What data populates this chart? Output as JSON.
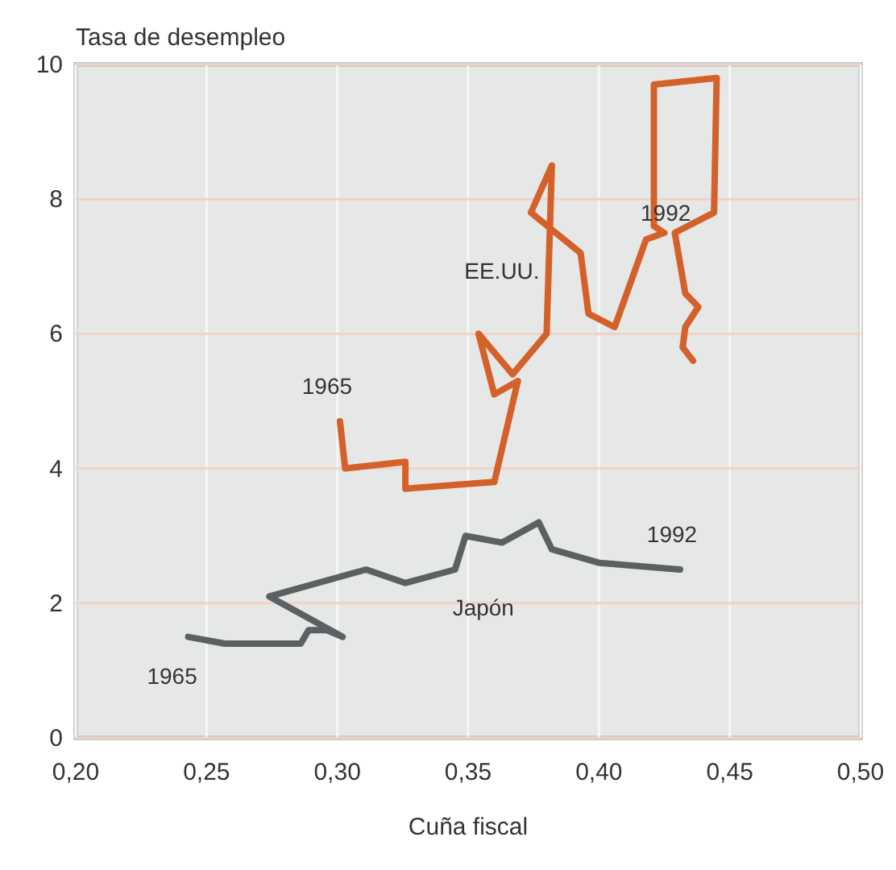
{
  "chart_data": {
    "type": "line",
    "xlabel": "Cuña fiscal",
    "ylabel": "Tasa de desempleo",
    "xlim": [
      0.2,
      0.5
    ],
    "ylim": [
      0,
      10
    ],
    "xticks": [
      {
        "value": 0.2,
        "label": "0,20"
      },
      {
        "value": 0.25,
        "label": "0,25"
      },
      {
        "value": 0.3,
        "label": "0,30"
      },
      {
        "value": 0.35,
        "label": "0,35"
      },
      {
        "value": 0.4,
        "label": "0,40"
      },
      {
        "value": 0.45,
        "label": "0,45"
      },
      {
        "value": 0.5,
        "label": "0,50"
      }
    ],
    "yticks": [
      0,
      2,
      4,
      6,
      8,
      10
    ],
    "grid": true,
    "line_style": "solid",
    "series": [
      {
        "name": "EE.UU.",
        "color": "#d4602a",
        "x": [
          0.301,
          0.303,
          0.326,
          0.326,
          0.36,
          0.369,
          0.36,
          0.354,
          0.367,
          0.38,
          0.382,
          0.374,
          0.393,
          0.396,
          0.406,
          0.418,
          0.425,
          0.421,
          0.421,
          0.445,
          0.444,
          0.429,
          0.433,
          0.438,
          0.433,
          0.432,
          0.436
        ],
        "values": [
          4.7,
          4.0,
          4.1,
          3.7,
          3.8,
          5.3,
          5.1,
          6.0,
          5.4,
          6.0,
          8.5,
          7.8,
          7.2,
          6.3,
          6.1,
          7.4,
          7.5,
          7.6,
          9.7,
          9.8,
          7.8,
          7.5,
          6.6,
          6.4,
          6.1,
          5.8,
          5.6
        ]
      },
      {
        "name": "Japón",
        "color": "#5b6063",
        "x": [
          0.243,
          0.257,
          0.286,
          0.289,
          0.296,
          0.302,
          0.274,
          0.311,
          0.326,
          0.345,
          0.349,
          0.363,
          0.377,
          0.382,
          0.4,
          0.431
        ],
        "values": [
          1.5,
          1.4,
          1.4,
          1.6,
          1.6,
          1.5,
          2.1,
          2.5,
          2.3,
          2.5,
          3.0,
          2.9,
          3.2,
          2.8,
          2.6,
          2.5
        ]
      }
    ],
    "annotations": [
      "1965",
      "1992",
      "1965",
      "1992"
    ]
  }
}
